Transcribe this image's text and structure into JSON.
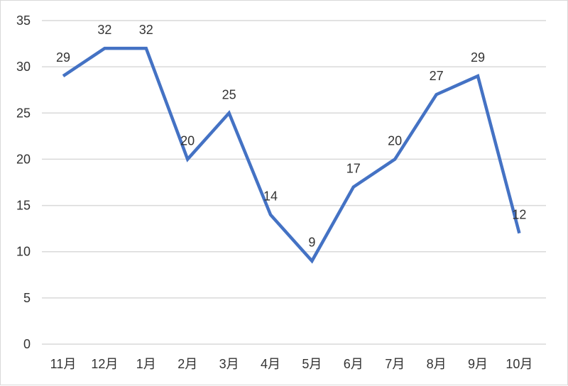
{
  "chart_data": {
    "type": "line",
    "title": "",
    "xlabel": "",
    "ylabel": "",
    "categories": [
      "11月",
      "12月",
      "1月",
      "2月",
      "3月",
      "4月",
      "5月",
      "6月",
      "7月",
      "8月",
      "9月",
      "10月"
    ],
    "series": [
      {
        "values": [
          29,
          32,
          32,
          20,
          25,
          14,
          9,
          17,
          20,
          27,
          29,
          12
        ]
      }
    ],
    "ylim": [
      0,
      35
    ],
    "yticks": [
      0,
      5,
      10,
      15,
      20,
      25,
      30,
      35
    ],
    "grid": true,
    "legend": "none",
    "data_labels": true,
    "colors": {
      "line": "#4472c4",
      "grid": "#d9d9d9",
      "text": "#333333"
    }
  }
}
